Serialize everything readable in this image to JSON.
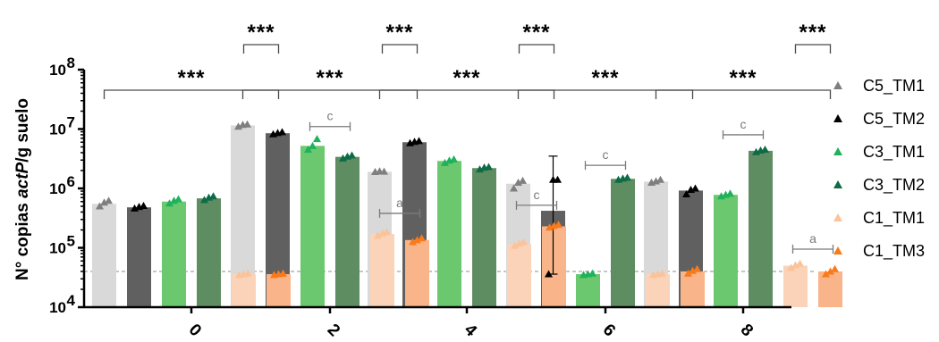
{
  "chart_data": {
    "type": "bar",
    "title": "",
    "xlabel": "",
    "ylabel_parts": [
      "N° copias ",
      "actP",
      "/g suelo"
    ],
    "yscale": "log",
    "ylim": [
      10000,
      100000000
    ],
    "y_ticks": [
      {
        "value": 10000,
        "base": "10",
        "exp": "4"
      },
      {
        "value": 100000,
        "base": "10",
        "exp": "5"
      },
      {
        "value": 1000000,
        "base": "10",
        "exp": "6"
      },
      {
        "value": 10000000,
        "base": "10",
        "exp": "7"
      },
      {
        "value": 100000000,
        "base": "10",
        "exp": "8"
      }
    ],
    "categories": [
      "0",
      "2",
      "4",
      "6",
      "8"
    ],
    "detection_limit": 40000,
    "legend_position": "right",
    "series": [
      {
        "name": "C5_TM1",
        "bar_color": "#d9d9d9",
        "marker_color": "#7f7f7f",
        "values": [
          550000,
          11500000,
          1900000,
          1200000,
          1300000
        ],
        "points": [
          [
            500000,
            580000,
            620000
          ],
          [
            11000000,
            11800000,
            12000000
          ],
          [
            1900000,
            1950000,
            1920000
          ],
          [
            1000000,
            1250000,
            1350000
          ],
          [
            1250000,
            1320000,
            1400000
          ]
        ],
        "errors": [
          null,
          null,
          null,
          null,
          null
        ]
      },
      {
        "name": "C5_TM2",
        "bar_color": "#606060",
        "marker_color": "#000000",
        "values": [
          480000,
          8500000,
          6000000,
          420000,
          920000
        ],
        "points": [
          [
            460000,
            490000,
            510000
          ],
          [
            8200000,
            8600000,
            8900000
          ],
          [
            5800000,
            6100000,
            6300000
          ],
          [
            36000,
            1400000,
            1400000
          ],
          [
            800000,
            950000,
            1000000
          ]
        ],
        "errors": [
          null,
          null,
          null,
          [
            36000,
            3500000
          ],
          null
        ]
      },
      {
        "name": "C3_TM1",
        "bar_color": "#6cc86e",
        "marker_color": "#1fb25a",
        "values": [
          600000,
          5200000,
          2900000,
          36000,
          780000
        ],
        "points": [
          [
            560000,
            620000,
            660000
          ],
          [
            4500000,
            5200000,
            6800000
          ],
          [
            2700000,
            2950000,
            3100000
          ],
          [
            35000,
            36000,
            37000
          ],
          [
            740000,
            780000,
            820000
          ]
        ],
        "errors": [
          null,
          null,
          null,
          null,
          null
        ]
      },
      {
        "name": "C3_TM2",
        "bar_color": "#5e8d62",
        "marker_color": "#0e6b45",
        "values": [
          680000,
          3400000,
          2200000,
          1450000,
          4300000
        ],
        "points": [
          [
            640000,
            700000,
            740000
          ],
          [
            3200000,
            3450000,
            3600000
          ],
          [
            2100000,
            2250000,
            2300000
          ],
          [
            1400000,
            1470000,
            1520000
          ],
          [
            4100000,
            4350000,
            4500000
          ]
        ],
        "errors": [
          null,
          null,
          null,
          null,
          null
        ]
      },
      {
        "name": "C1_TM1",
        "bar_color": "#fbd3b8",
        "marker_color": "#fbc39a",
        "values": [
          36000,
          170000,
          115000,
          36000,
          50000
        ],
        "points": [
          [
            35000,
            36000,
            37000
          ],
          [
            160000,
            175000,
            185000
          ],
          [
            108000,
            118000,
            125000
          ],
          [
            35000,
            36000,
            37000
          ],
          [
            46000,
            51000,
            54000
          ]
        ],
        "errors": [
          null,
          null,
          null,
          null,
          null
        ]
      },
      {
        "name": "C1_TM3",
        "bar_color": "#f9b48a",
        "marker_color": "#f97a1a",
        "values": [
          36000,
          135000,
          230000,
          40000,
          40000
        ],
        "points": [
          [
            35000,
            36000,
            37000
          ],
          [
            125000,
            135000,
            145000
          ],
          [
            220000,
            235000,
            245000
          ],
          [
            37000,
            41000,
            44000
          ],
          [
            36000,
            40000,
            44000
          ]
        ],
        "errors": [
          null,
          null,
          null,
          null,
          null
        ]
      }
    ],
    "significance": [
      {
        "label": "***",
        "group": 0,
        "from_series": 0,
        "to_series": 5,
        "tier": "low"
      },
      {
        "label": "***",
        "group": 0,
        "from_series": 4,
        "to_series": 5,
        "tier": "high"
      },
      {
        "label": "***",
        "group": 1,
        "from_series": 0,
        "to_series": 5,
        "tier": "low"
      },
      {
        "label": "***",
        "group": 1,
        "from_series": 4,
        "to_series": 5,
        "tier": "high"
      },
      {
        "label": "***",
        "group": 2,
        "from_series": 0,
        "to_series": 5,
        "tier": "low"
      },
      {
        "label": "***",
        "group": 2,
        "from_series": 4,
        "to_series": 5,
        "tier": "high"
      },
      {
        "label": "***",
        "group": 3,
        "from_series": 0,
        "to_series": 5,
        "tier": "low"
      },
      {
        "label": "***",
        "group": 4,
        "from_series": 0,
        "to_series": 5,
        "tier": "low"
      },
      {
        "label": "***",
        "group": 4,
        "from_series": 4,
        "to_series": 5,
        "tier": "high"
      }
    ],
    "letters": [
      {
        "label": "c",
        "group": 1,
        "from_series": 2,
        "to_series": 3,
        "y": 11000000
      },
      {
        "label": "a",
        "group": 1,
        "from_series": 4,
        "to_series": 5,
        "y": 380000
      },
      {
        "label": "c",
        "group": 2,
        "from_series": 4,
        "to_series": 5,
        "y": 520000
      },
      {
        "label": "c",
        "group": 3,
        "from_series": 2,
        "to_series": 3,
        "y": 2450000
      },
      {
        "label": "c",
        "group": 4,
        "from_series": 2,
        "to_series": 3,
        "y": 8000000
      },
      {
        "label": "a",
        "group": 4,
        "from_series": 4,
        "to_series": 5,
        "y": 95000
      }
    ]
  }
}
